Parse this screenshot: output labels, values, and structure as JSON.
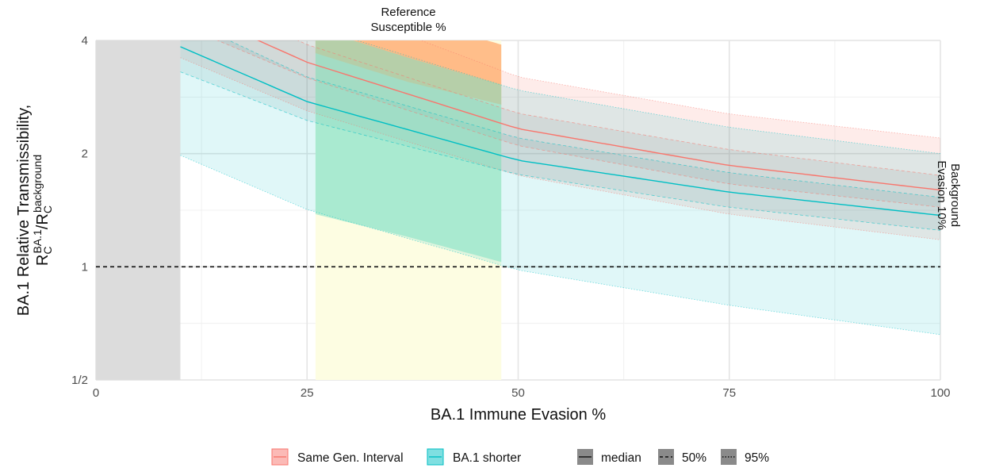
{
  "chart_data": {
    "type": "area",
    "xlabel": "BA.1 Immune Evasion %",
    "ylabel_line1": "BA.1 Relative Transmissibility,",
    "ylabel_line2": {
      "r1": "R",
      "sub1": "C",
      "sup1": "BA.1",
      "slash": "/",
      "r2": "R",
      "sub2": "C",
      "sup2": "background"
    },
    "y_scale": "log2",
    "xlim": [
      0,
      100
    ],
    "ylim": [
      0.5,
      4
    ],
    "x_ticks": [
      0,
      25,
      50,
      75,
      100
    ],
    "x_tick_labels": [
      "0",
      "25",
      "50",
      "75",
      "100"
    ],
    "y_ticks": [
      0.5,
      1,
      2,
      4
    ],
    "y_tick_labels": [
      "1/2",
      "1",
      "2",
      "4"
    ],
    "grid": true,
    "reference_line": {
      "y": 1,
      "style": "dashed"
    },
    "background_evasion": {
      "x_range": [
        0,
        10
      ],
      "label": [
        "Background",
        "Evasion 10%"
      ],
      "color": "#dcdcdc"
    },
    "reference_susceptible": {
      "x_range": [
        26,
        48
      ],
      "label": [
        "Reference",
        "Susceptible %"
      ],
      "color": "#fdfde2"
    },
    "series": [
      {
        "name": "Same Gen. Interval",
        "color": "#f8766d",
        "x": [
          10,
          25,
          50,
          75,
          100
        ],
        "median": [
          4.95,
          3.5,
          2.33,
          1.86,
          1.6
        ],
        "q25": [
          4.4,
          3.18,
          2.1,
          1.66,
          1.44
        ],
        "q75": [
          5.6,
          3.9,
          2.56,
          2.05,
          1.75
        ],
        "q2_5": [
          3.6,
          2.6,
          1.75,
          1.38,
          1.18
        ],
        "q97_5": [
          7.6,
          5.2,
          3.2,
          2.55,
          2.2
        ]
      },
      {
        "name": "BA.1 shorter",
        "color": "#00bfc4",
        "x": [
          10,
          25,
          50,
          75,
          100
        ],
        "median": [
          3.85,
          2.75,
          1.92,
          1.58,
          1.37
        ],
        "q25": [
          3.3,
          2.45,
          1.76,
          1.44,
          1.25
        ],
        "q75": [
          4.6,
          3.2,
          2.2,
          1.78,
          1.53
        ],
        "q2_5": [
          1.98,
          1.42,
          0.98,
          0.79,
          0.66
        ],
        "q97_5": [
          6.2,
          4.4,
          2.95,
          2.35,
          2.0
        ]
      }
    ],
    "reference_overlap": {
      "x": [
        26,
        37,
        48
      ],
      "same_upper": [
        5.5,
        4.6,
        3.9
      ],
      "same_lower_vis": [
        3.7,
        3.1,
        2.7
      ],
      "shorter_upper": [
        4.3,
        3.6,
        3.05
      ],
      "shorter_lower": [
        1.38,
        1.2,
        1.03
      ]
    },
    "legend": {
      "position": "bottom",
      "fill_items": [
        "Same Gen. Interval",
        "BA.1 shorter"
      ],
      "line_items": [
        {
          "label": "median",
          "dash": "solid"
        },
        {
          "label": "50%",
          "dash": "dashed"
        },
        {
          "label": "95%",
          "dash": "dotted"
        }
      ]
    }
  }
}
